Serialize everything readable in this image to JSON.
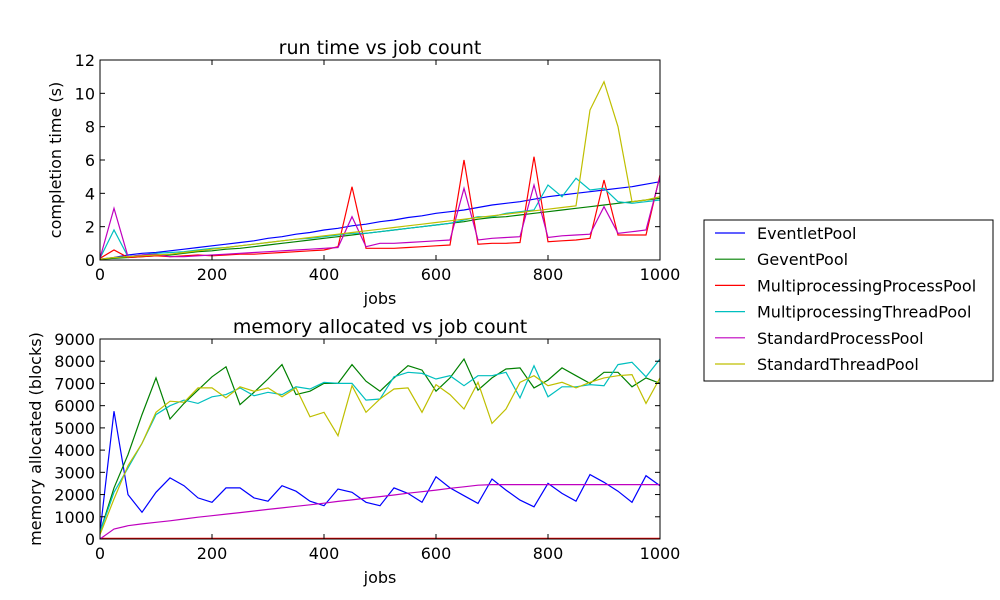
{
  "legend": [
    {
      "name": "EventletPool",
      "color": "#0000ff"
    },
    {
      "name": "GeventPool",
      "color": "#008000"
    },
    {
      "name": "MultiprocessingProcessPool",
      "color": "#ff0000"
    },
    {
      "name": "MultiprocessingThreadPool",
      "color": "#00bfbf"
    },
    {
      "name": "StandardProcessPool",
      "color": "#bf00bf"
    },
    {
      "name": "StandardThreadPool",
      "color": "#bfbf00"
    }
  ],
  "chart_data": [
    {
      "type": "line",
      "title": "run time vs job count",
      "xlabel": "jobs",
      "ylabel": "completion time (s)",
      "xlim": [
        0,
        1000
      ],
      "ylim": [
        0,
        12
      ],
      "xticks": [
        "0",
        "200",
        "400",
        "600",
        "800",
        "1000"
      ],
      "yticks": [
        "0",
        "2",
        "4",
        "6",
        "8",
        "10",
        "12"
      ],
      "x": [
        0,
        25,
        50,
        75,
        100,
        125,
        150,
        175,
        200,
        225,
        250,
        275,
        300,
        325,
        350,
        375,
        400,
        425,
        450,
        475,
        500,
        525,
        550,
        575,
        600,
        625,
        650,
        675,
        700,
        725,
        750,
        775,
        800,
        825,
        850,
        875,
        900,
        925,
        950,
        975,
        1000
      ],
      "series": [
        {
          "name": "EventletPool",
          "color": "#0000ff",
          "values": [
            0.05,
            0.15,
            0.3,
            0.4,
            0.45,
            0.55,
            0.65,
            0.75,
            0.85,
            0.95,
            1.05,
            1.15,
            1.3,
            1.4,
            1.55,
            1.65,
            1.8,
            1.9,
            2.05,
            2.15,
            2.3,
            2.4,
            2.55,
            2.65,
            2.8,
            2.9,
            3.0,
            3.15,
            3.3,
            3.4,
            3.5,
            3.65,
            3.8,
            3.9,
            4.0,
            4.1,
            4.2,
            4.3,
            4.4,
            4.55,
            4.7
          ]
        },
        {
          "name": "GeventPool",
          "color": "#008000",
          "values": [
            0.05,
            0.1,
            0.15,
            0.2,
            0.25,
            0.3,
            0.4,
            0.5,
            0.55,
            0.65,
            0.7,
            0.8,
            0.9,
            1.0,
            1.1,
            1.2,
            1.3,
            1.4,
            1.5,
            1.6,
            1.7,
            1.8,
            1.9,
            2.0,
            2.1,
            2.2,
            2.3,
            2.45,
            2.55,
            2.6,
            2.7,
            2.8,
            2.9,
            3.0,
            3.1,
            3.2,
            3.3,
            3.4,
            3.5,
            3.6,
            3.7
          ]
        },
        {
          "name": "MultiprocessingProcessPool",
          "color": "#ff0000",
          "values": [
            0.1,
            0.6,
            0.15,
            0.2,
            0.25,
            0.2,
            0.25,
            0.3,
            0.25,
            0.3,
            0.35,
            0.35,
            0.4,
            0.45,
            0.5,
            0.55,
            0.6,
            0.8,
            4.4,
            0.7,
            0.7,
            0.7,
            0.75,
            0.8,
            0.85,
            0.9,
            6.0,
            0.95,
            1.0,
            1.0,
            1.05,
            6.2,
            1.1,
            1.15,
            1.2,
            1.3,
            4.8,
            1.5,
            1.5,
            1.5,
            5.1
          ]
        },
        {
          "name": "MultiprocessingThreadPool",
          "color": "#00bfbf",
          "values": [
            0.1,
            1.8,
            0.2,
            0.3,
            0.4,
            0.45,
            0.5,
            0.6,
            0.7,
            0.75,
            0.85,
            0.95,
            1.05,
            1.15,
            1.25,
            1.3,
            1.4,
            1.5,
            1.6,
            1.6,
            1.7,
            1.8,
            1.9,
            2.0,
            2.1,
            2.2,
            2.4,
            2.6,
            2.6,
            2.8,
            2.9,
            3.0,
            4.5,
            3.8,
            4.9,
            4.2,
            4.3,
            3.5,
            3.4,
            3.5,
            3.6
          ]
        },
        {
          "name": "StandardProcessPool",
          "color": "#bf00bf",
          "values": [
            0.1,
            3.1,
            0.2,
            0.3,
            0.35,
            0.2,
            0.2,
            0.25,
            0.3,
            0.35,
            0.4,
            0.45,
            0.5,
            0.55,
            0.6,
            0.65,
            0.7,
            0.75,
            2.6,
            0.8,
            1.0,
            1.0,
            1.05,
            1.1,
            1.15,
            1.2,
            4.3,
            1.2,
            1.3,
            1.35,
            1.4,
            4.5,
            1.35,
            1.45,
            1.5,
            1.55,
            3.2,
            1.6,
            1.7,
            1.8,
            5.0
          ]
        },
        {
          "name": "StandardThreadPool",
          "color": "#bfbf00",
          "values": [
            0.05,
            0.15,
            0.2,
            0.25,
            0.3,
            0.35,
            0.45,
            0.55,
            0.65,
            0.75,
            0.85,
            0.95,
            1.05,
            1.15,
            1.25,
            1.35,
            1.45,
            1.55,
            1.65,
            1.75,
            1.85,
            1.95,
            2.05,
            2.15,
            2.25,
            2.35,
            2.45,
            2.55,
            2.65,
            2.75,
            2.85,
            2.95,
            3.05,
            3.15,
            3.25,
            9.0,
            10.7,
            8.0,
            3.5,
            3.6,
            3.8
          ]
        }
      ]
    },
    {
      "type": "line",
      "title": "memory allocated vs job count",
      "xlabel": "jobs",
      "ylabel": "memory allocated (blocks)",
      "xlim": [
        0,
        1000
      ],
      "ylim": [
        0,
        9000
      ],
      "xticks": [
        "0",
        "200",
        "400",
        "600",
        "800",
        "1000"
      ],
      "yticks": [
        "0",
        "1000",
        "2000",
        "3000",
        "4000",
        "5000",
        "6000",
        "7000",
        "8000",
        "9000"
      ],
      "x": [
        0,
        25,
        50,
        75,
        100,
        125,
        150,
        175,
        200,
        225,
        250,
        275,
        300,
        325,
        350,
        375,
        400,
        425,
        450,
        475,
        500,
        525,
        550,
        575,
        600,
        625,
        650,
        675,
        700,
        725,
        750,
        775,
        800,
        825,
        850,
        875,
        900,
        925,
        950,
        975,
        1000
      ],
      "series": [
        {
          "name": "EventletPool",
          "color": "#0000ff",
          "values": [
            300,
            5750,
            2000,
            1200,
            2100,
            2750,
            2400,
            1850,
            1650,
            2300,
            2300,
            1850,
            1700,
            2400,
            2150,
            1700,
            1500,
            2250,
            2100,
            1650,
            1500,
            2300,
            2050,
            1650,
            2800,
            2300,
            1950,
            1600,
            2700,
            2200,
            1750,
            1450,
            2500,
            2050,
            1700,
            2900,
            2550,
            2150,
            1650,
            2850,
            2400
          ]
        },
        {
          "name": "GeventPool",
          "color": "#008000",
          "values": [
            300,
            2300,
            3800,
            5600,
            7250,
            5400,
            6100,
            6700,
            7300,
            7750,
            6050,
            6600,
            7200,
            7850,
            6500,
            6650,
            7000,
            7000,
            7850,
            7100,
            6650,
            7250,
            7800,
            7600,
            6650,
            7250,
            8100,
            6700,
            7250,
            7650,
            7700,
            6800,
            7150,
            7700,
            7350,
            7000,
            7500,
            7500,
            6850,
            7250,
            7000
          ]
        },
        {
          "name": "MultiprocessingProcessPool",
          "color": "#ff0000",
          "values": [
            30,
            30,
            30,
            30,
            30,
            30,
            30,
            30,
            30,
            30,
            30,
            30,
            30,
            30,
            30,
            30,
            30,
            30,
            30,
            30,
            30,
            30,
            30,
            30,
            30,
            30,
            30,
            30,
            30,
            30,
            30,
            30,
            30,
            30,
            30,
            30,
            30,
            30,
            30,
            30,
            30
          ]
        },
        {
          "name": "MultiprocessingThreadPool",
          "color": "#00bfbf",
          "values": [
            300,
            2100,
            3200,
            4300,
            5600,
            6000,
            6250,
            6100,
            6400,
            6500,
            6800,
            6450,
            6600,
            6500,
            6850,
            6750,
            7050,
            7000,
            7000,
            6250,
            6300,
            7300,
            7500,
            7450,
            7200,
            7350,
            6900,
            7350,
            7350,
            7500,
            6350,
            7800,
            6400,
            6850,
            6850,
            6950,
            6900,
            7850,
            7950,
            7300,
            8100
          ]
        },
        {
          "name": "StandardProcessPool",
          "color": "#bf00bf",
          "values": [
            0,
            450,
            600,
            680,
            750,
            820,
            900,
            980,
            1050,
            1120,
            1190,
            1260,
            1330,
            1400,
            1470,
            1540,
            1610,
            1690,
            1760,
            1840,
            1910,
            1980,
            2060,
            2130,
            2200,
            2280,
            2350,
            2420,
            2450,
            2450,
            2450,
            2450,
            2450,
            2450,
            2450,
            2450,
            2450,
            2450,
            2450,
            2450,
            2450
          ]
        },
        {
          "name": "StandardThreadPool",
          "color": "#bfbf00",
          "values": [
            200,
            1800,
            3300,
            4300,
            5700,
            6200,
            6150,
            6800,
            6800,
            6350,
            6850,
            6650,
            6800,
            6400,
            6800,
            5500,
            5700,
            4650,
            6900,
            5700,
            6300,
            6750,
            6800,
            5700,
            6950,
            6500,
            5850,
            7050,
            5200,
            5850,
            7050,
            7350,
            6900,
            7050,
            6800,
            7050,
            7250,
            7350,
            7400,
            6100,
            7250
          ]
        }
      ]
    }
  ]
}
